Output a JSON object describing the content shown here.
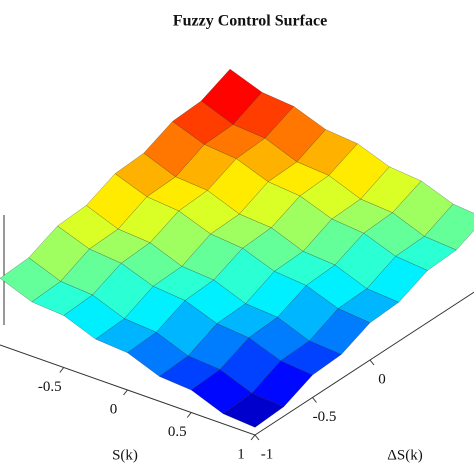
{
  "chart_data": {
    "type": "surface",
    "title": "Fuzzy Control Surface",
    "xlabel": "S(k)",
    "ylabel": "ΔS(k)",
    "x": [
      -1,
      -0.75,
      -0.5,
      -0.25,
      0,
      0.25,
      0.5,
      0.75,
      1
    ],
    "y": [
      -1,
      -0.75,
      -0.5,
      -0.25,
      0,
      0.25,
      0.5,
      0.75,
      1
    ],
    "z": [
      [
        0.13,
        0.16,
        0.38,
        0.41,
        0.63,
        0.66,
        0.88,
        0.91,
        1.13
      ],
      [
        -0.08,
        -0.05,
        0.18,
        0.2,
        0.43,
        0.45,
        0.68,
        0.7,
        0.93
      ],
      [
        -0.12,
        -0.09,
        0.13,
        0.16,
        0.38,
        0.41,
        0.63,
        0.66,
        0.88
      ],
      [
        -0.33,
        -0.3,
        -0.07,
        -0.05,
        0.18,
        0.2,
        0.43,
        0.45,
        0.68
      ],
      [
        -0.37,
        -0.34,
        -0.12,
        -0.09,
        0.13,
        0.16,
        0.38,
        0.41,
        0.63
      ],
      [
        -0.58,
        -0.55,
        -0.32,
        -0.3,
        -0.07,
        -0.05,
        0.18,
        0.2,
        0.43
      ],
      [
        -0.62,
        -0.59,
        -0.37,
        -0.34,
        -0.12,
        -0.09,
        0.13,
        0.16,
        0.38
      ],
      [
        -0.83,
        -0.8,
        -0.57,
        -0.55,
        -0.32,
        -0.3,
        -0.07,
        -0.05,
        0.18
      ],
      [
        -0.87,
        -0.84,
        -0.62,
        -0.59,
        -0.37,
        -0.34,
        -0.12,
        -0.09,
        0.13
      ]
    ],
    "xlim": [
      -1,
      1
    ],
    "ylim": [
      -1,
      1
    ],
    "zlim": [
      -1,
      1.2
    ],
    "xticks": [
      -0.5,
      0,
      0.5,
      1
    ],
    "yticks": [
      -1,
      -0.5,
      0
    ],
    "colormap": "jet"
  }
}
